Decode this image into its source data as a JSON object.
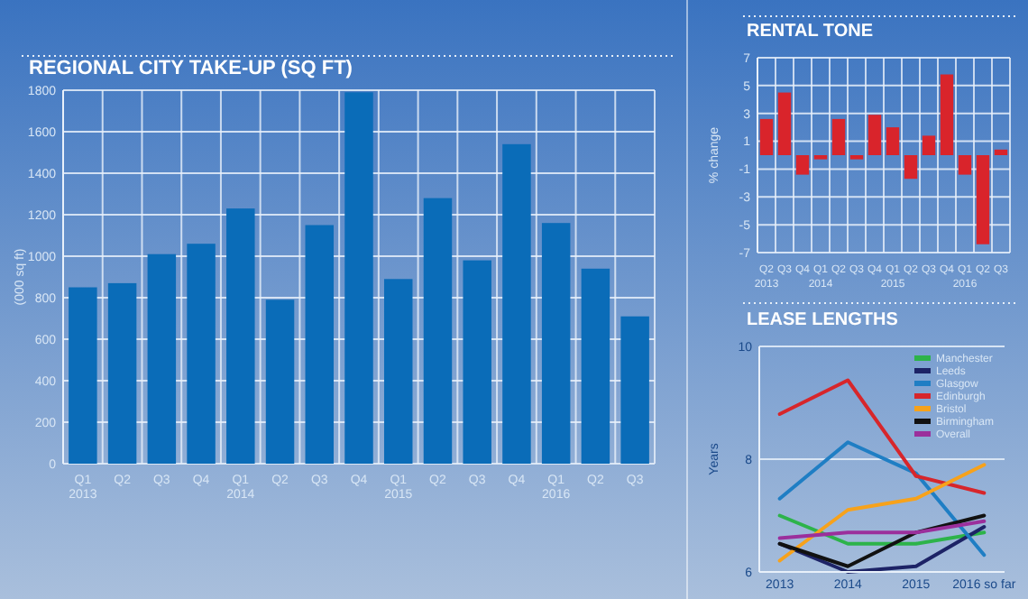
{
  "chart_data": [
    {
      "type": "bar",
      "title": "REGIONAL CITY TAKE-UP (SQ FT)",
      "ylabel": "(000 sq ft)",
      "categories": [
        "Q1\n2013",
        "Q2",
        "Q3",
        "Q4",
        "Q1\n2014",
        "Q2",
        "Q3",
        "Q4",
        "Q1\n2015",
        "Q2",
        "Q3",
        "Q4",
        "Q1\n2016",
        "Q2",
        "Q3"
      ],
      "values": [
        850,
        870,
        1010,
        1060,
        1230,
        790,
        1150,
        1790,
        890,
        1280,
        980,
        1540,
        1160,
        940,
        710
      ],
      "color": "#0a6cb8",
      "ylim": [
        0,
        1800
      ],
      "yticks": [
        0,
        200,
        400,
        600,
        800,
        1000,
        1200,
        1400,
        1600,
        1800
      ],
      "grid": true
    },
    {
      "type": "bar",
      "title": "RENTAL TONE",
      "ylabel": "% change",
      "categories": [
        "Q2\n2013",
        "Q3",
        "Q4",
        "Q1\n2014",
        "Q2",
        "Q3",
        "Q4",
        "Q1\n2015",
        "Q2",
        "Q3",
        "Q4",
        "Q1\n2016",
        "Q2",
        "Q3"
      ],
      "values": [
        2.6,
        4.5,
        -1.4,
        -0.3,
        2.6,
        -0.3,
        2.9,
        2.0,
        -1.7,
        1.4,
        5.8,
        -1.4,
        -6.4,
        0.4
      ],
      "color": "#d9242b",
      "ylim": [
        -7,
        7
      ],
      "yticks": [
        -7,
        -5,
        -3,
        -1,
        1,
        3,
        5,
        7
      ],
      "grid": true
    },
    {
      "type": "line",
      "title": "LEASE LENGTHS",
      "ylabel": "Years",
      "categories": [
        "2013",
        "2014",
        "2015",
        "2016 so far"
      ],
      "series": [
        {
          "name": "Manchester",
          "color": "#2db34a",
          "values": [
            7.0,
            6.5,
            6.5,
            6.7
          ]
        },
        {
          "name": "Leeds",
          "color": "#1d2366",
          "values": [
            6.5,
            6.0,
            6.1,
            6.8
          ]
        },
        {
          "name": "Glasgow",
          "color": "#1f7ec4",
          "values": [
            7.3,
            8.3,
            7.75,
            6.3
          ]
        },
        {
          "name": "Edinburgh",
          "color": "#d7262b",
          "values": [
            8.8,
            9.4,
            7.7,
            7.4
          ]
        },
        {
          "name": "Bristol",
          "color": "#f7a21b",
          "values": [
            6.2,
            7.1,
            7.3,
            7.9
          ]
        },
        {
          "name": "Birmingham",
          "color": "#111111",
          "values": [
            6.5,
            6.1,
            6.7,
            7.0
          ]
        },
        {
          "name": "Overall",
          "color": "#9b2f9c",
          "values": [
            6.6,
            6.7,
            6.7,
            6.9
          ]
        }
      ],
      "ylim": [
        6,
        10
      ],
      "yticks": [
        6,
        8,
        10
      ],
      "grid": "y",
      "legend": "top right"
    }
  ]
}
